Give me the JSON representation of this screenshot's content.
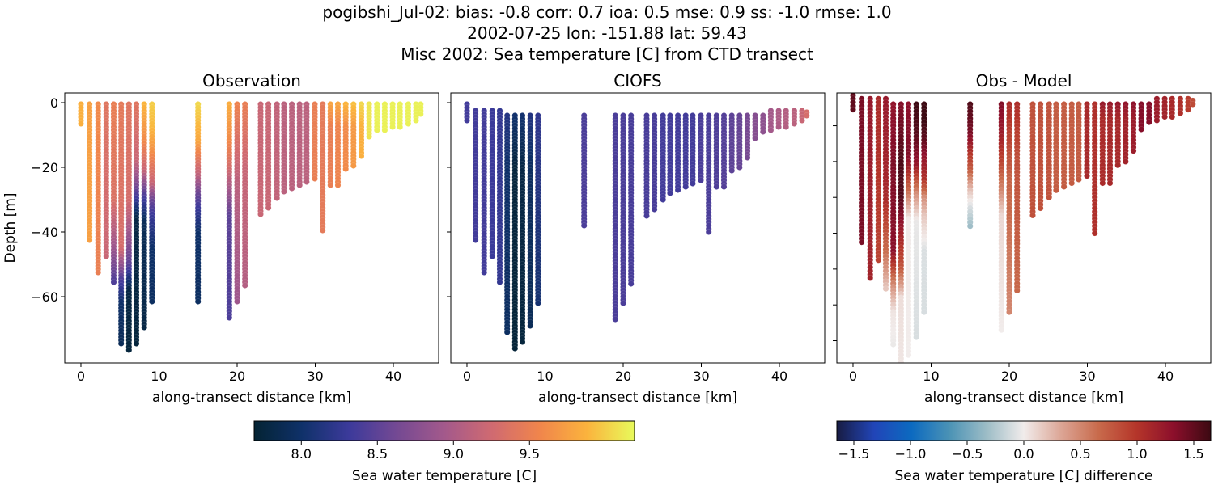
{
  "title_lines": [
    "pogibshi_Jul-02: bias: -0.8  corr: 0.7  ioa: 0.5  mse: 0.9  ss: -1.0  rmse: 1.0",
    "2002-07-25 lon: -151.88 lat: 59.43",
    "Misc 2002: Sea temperature [C] from CTD transect"
  ],
  "colormaps": {
    "thermal": [
      "#042333",
      "#0f3169",
      "#3c3a9b",
      "#744993",
      "#a3598b",
      "#d06a71",
      "#f0854c",
      "#fbb33d",
      "#e8fa5b"
    ],
    "balance": [
      "#181c43",
      "#2145b8",
      "#0c6ac0",
      "#4a92b5",
      "#9cbcc6",
      "#f1eceb",
      "#dca595",
      "#c86a4b",
      "#b5362a",
      "#8c0f2b",
      "#3c0912"
    ]
  },
  "chart_data": [
    {
      "type": "scatter",
      "title": "Observation",
      "xlabel": "along-transect distance [km]",
      "ylabel": "Depth [m]",
      "xlim": [
        -2.07,
        45.8
      ],
      "ylim": [
        -80.5,
        3
      ],
      "xticks": [
        0,
        10,
        20,
        30,
        40
      ],
      "yticks": [
        0,
        -20,
        -40,
        -60
      ],
      "ytick_labels": true,
      "field": "obs",
      "colormap": "thermal",
      "clim": [
        7.69,
        10.19
      ]
    },
    {
      "type": "scatter",
      "title": "CIOFS",
      "xlabel": "along-transect distance [km]",
      "xlim": [
        -2.07,
        45.8
      ],
      "ylim": [
        -80.5,
        3
      ],
      "xticks": [
        0,
        10,
        20,
        30,
        40
      ],
      "yticks": [
        0,
        -20,
        -40,
        -60
      ],
      "ytick_labels": false,
      "field": "model",
      "colormap": "thermal",
      "clim": [
        7.69,
        10.19
      ]
    },
    {
      "type": "scatter",
      "title": "Obs - Model",
      "xlabel": "along-transect distance [km]",
      "xlim": [
        -2.07,
        45.8
      ],
      "ylim": [
        -76.2,
        -0.85
      ],
      "xticks": [
        0,
        10,
        20,
        30,
        40
      ],
      "yticks": [
        -10,
        -20,
        -30,
        -40,
        -50,
        -60,
        -70
      ],
      "ytick_labels": false,
      "field": "diff",
      "colormap": "balance",
      "clim": [
        -1.65,
        1.65
      ]
    }
  ],
  "colorbars": [
    {
      "label": "Sea water temperature [C]",
      "colormap": "thermal",
      "clim": [
        7.69,
        10.19
      ],
      "ticks": [
        "8.0",
        "8.5",
        "9.0",
        "9.5"
      ]
    },
    {
      "label": "Sea water temperature [C] difference",
      "colormap": "balance",
      "clim": [
        -1.65,
        1.65
      ],
      "ticks": [
        "−1.5",
        "−1.0",
        "−0.5",
        "0.0",
        "0.5",
        "1.0",
        "1.5"
      ]
    }
  ],
  "casts": [
    {
      "x": 0,
      "obs": {
        "top": -0.5,
        "bottom": -7,
        "profile": [
          [
            0,
            9.85
          ]
        ]
      },
      "model": {
        "top": -0.5,
        "bottom": -6,
        "profile": [
          [
            0,
            8.35
          ]
        ]
      }
    },
    {
      "x": 1.1,
      "obs": {
        "top": -0.5,
        "bottom": -43,
        "profile": [
          [
            0,
            9.75
          ]
        ]
      },
      "model": {
        "top": -2.5,
        "bottom": -43,
        "profile": [
          [
            0,
            8.35
          ]
        ]
      }
    },
    {
      "x": 2.2,
      "obs": {
        "top": -0.5,
        "bottom": -53,
        "profile": [
          [
            0,
            9.6
          ],
          [
            -53,
            9.5
          ]
        ]
      },
      "model": {
        "top": -2.5,
        "bottom": -53,
        "profile": [
          [
            0,
            8.35
          ]
        ]
      }
    },
    {
      "x": 3.25,
      "obs": {
        "top": -0.5,
        "bottom": -48,
        "profile": [
          [
            0,
            9.4
          ],
          [
            -48,
            9.2
          ]
        ]
      },
      "model": {
        "top": -2.5,
        "bottom": -48,
        "profile": [
          [
            0,
            8.3
          ]
        ]
      }
    },
    {
      "x": 4.2,
      "obs": {
        "top": -0.5,
        "bottom": -56,
        "profile": [
          [
            0,
            9.5
          ],
          [
            -30,
            9.35
          ],
          [
            -45,
            8.9
          ],
          [
            -56,
            8.4
          ]
        ]
      },
      "model": {
        "top": -2.5,
        "bottom": -56,
        "profile": [
          [
            0,
            8.25
          ]
        ]
      }
    },
    {
      "x": 5.15,
      "obs": {
        "top": -0.5,
        "bottom": -74.5,
        "profile": [
          [
            0,
            9.45
          ],
          [
            -45,
            9.3
          ],
          [
            -55,
            8.4
          ],
          [
            -62,
            8.0
          ],
          [
            -74.5,
            7.9
          ]
        ]
      },
      "model": {
        "top": -4,
        "bottom": -71.5,
        "profile": [
          [
            0,
            8.2
          ],
          [
            -20,
            8.0
          ],
          [
            -71.5,
            7.95
          ]
        ]
      }
    },
    {
      "x": 6.15,
      "obs": {
        "top": -0.5,
        "bottom": -76.5,
        "profile": [
          [
            0,
            9.4
          ],
          [
            -30,
            9.3
          ],
          [
            -38,
            9.0
          ],
          [
            -50,
            8.5
          ],
          [
            -58,
            7.8
          ],
          [
            -76.5,
            7.75
          ]
        ]
      },
      "model": {
        "top": -4,
        "bottom": -76.5,
        "profile": [
          [
            0,
            8.1
          ],
          [
            -20,
            7.75
          ],
          [
            -76.5,
            7.72
          ]
        ]
      }
    },
    {
      "x": 7.1,
      "obs": {
        "top": -0.5,
        "bottom": -74.5,
        "profile": [
          [
            0,
            9.4
          ],
          [
            -18,
            9.2
          ],
          [
            -24,
            8.8
          ],
          [
            -30,
            8.3
          ],
          [
            -36,
            7.8
          ],
          [
            -74.5,
            7.75
          ]
        ]
      },
      "model": {
        "top": -4,
        "bottom": -74,
        "profile": [
          [
            0,
            8.1
          ],
          [
            -20,
            7.8
          ],
          [
            -74,
            7.75
          ]
        ]
      }
    },
    {
      "x": 8.1,
      "obs": {
        "top": -0.5,
        "bottom": -69.5,
        "profile": [
          [
            0,
            9.9
          ],
          [
            -12,
            9.6
          ],
          [
            -21,
            9.2
          ],
          [
            -29,
            8.4
          ],
          [
            -37,
            7.9
          ],
          [
            -69.5,
            7.8
          ]
        ]
      },
      "model": {
        "top": -4,
        "bottom": -69.5,
        "profile": [
          [
            0,
            8.2
          ],
          [
            -20,
            7.95
          ],
          [
            -69.5,
            7.9
          ]
        ]
      }
    },
    {
      "x": 9.1,
      "obs": {
        "top": -0.5,
        "bottom": -62.4,
        "profile": [
          [
            0,
            10.0
          ],
          [
            -8,
            9.9
          ],
          [
            -14,
            9.7
          ],
          [
            -20,
            9.4
          ],
          [
            -25,
            9.2
          ],
          [
            -30,
            8.6
          ],
          [
            -35,
            8.3
          ],
          [
            -45,
            8.0
          ],
          [
            -62.4,
            7.95
          ]
        ]
      },
      "model": {
        "top": -4,
        "bottom": -62.4,
        "profile": [
          [
            0,
            8.25
          ],
          [
            -40,
            8.1
          ],
          [
            -62.4,
            8.05
          ]
        ]
      }
    },
    {
      "x": 15.0,
      "obs": {
        "top": -0.5,
        "bottom": -62.4,
        "profile": [
          [
            0,
            10.05
          ],
          [
            -12,
            9.8
          ],
          [
            -18,
            9.4
          ],
          [
            -23,
            9.1
          ],
          [
            -28,
            8.6
          ],
          [
            -33,
            8.3
          ],
          [
            -40,
            8.0
          ],
          [
            -62.4,
            7.95
          ]
        ]
      },
      "model": {
        "top": -4,
        "bottom": -38,
        "profile": [
          [
            0,
            8.4
          ]
        ]
      }
    },
    {
      "x": 19.0,
      "obs": {
        "top": -0.5,
        "bottom": -67.4,
        "profile": [
          [
            0,
            9.85
          ],
          [
            -12,
            9.6
          ],
          [
            -20,
            9.3
          ],
          [
            -28,
            8.9
          ],
          [
            -35,
            8.5
          ],
          [
            -67.4,
            8.4
          ]
        ]
      },
      "model": {
        "top": -4,
        "bottom": -67.4,
        "profile": [
          [
            0,
            8.4
          ]
        ]
      }
    },
    {
      "x": 20.0,
      "obs": {
        "top": -0.5,
        "bottom": -62.4,
        "profile": [
          [
            0,
            9.55
          ],
          [
            -25,
            9.1
          ],
          [
            -62.4,
            8.9
          ]
        ]
      },
      "model": {
        "top": -4,
        "bottom": -62.4,
        "profile": [
          [
            0,
            8.4
          ]
        ]
      }
    },
    {
      "x": 21.0,
      "obs": {
        "top": -0.5,
        "bottom": -56.5,
        "profile": [
          [
            0,
            9.5
          ],
          [
            -20,
            9.2
          ],
          [
            -56.5,
            9.05
          ]
        ]
      },
      "model": {
        "top": -4,
        "bottom": -56.5,
        "profile": [
          [
            0,
            8.38
          ]
        ]
      }
    },
    {
      "x": 23.0,
      "obs": {
        "top": -0.5,
        "bottom": -35,
        "profile": [
          [
            0,
            9.2
          ]
        ]
      },
      "model": {
        "top": -4,
        "bottom": -35,
        "profile": [
          [
            0,
            8.38
          ]
        ]
      }
    },
    {
      "x": 24.0,
      "obs": {
        "top": -0.5,
        "bottom": -33,
        "profile": [
          [
            0,
            9.2
          ]
        ]
      },
      "model": {
        "top": -4,
        "bottom": -33,
        "profile": [
          [
            0,
            8.38
          ]
        ]
      }
    },
    {
      "x": 25.1,
      "obs": {
        "top": -0.5,
        "bottom": -30,
        "profile": [
          [
            0,
            9.15
          ]
        ]
      },
      "model": {
        "top": -4,
        "bottom": -30,
        "profile": [
          [
            0,
            8.35
          ]
        ]
      }
    },
    {
      "x": 26.0,
      "obs": {
        "top": -0.5,
        "bottom": -28,
        "profile": [
          [
            0,
            9.1
          ]
        ]
      },
      "model": {
        "top": -4,
        "bottom": -28,
        "profile": [
          [
            0,
            8.35
          ]
        ]
      }
    },
    {
      "x": 27.0,
      "obs": {
        "top": -0.5,
        "bottom": -27,
        "profile": [
          [
            0,
            9.1
          ]
        ]
      },
      "model": {
        "top": -4,
        "bottom": -27,
        "profile": [
          [
            0,
            8.35
          ]
        ]
      }
    },
    {
      "x": 28.0,
      "obs": {
        "top": -0.5,
        "bottom": -26,
        "profile": [
          [
            0,
            9.1
          ]
        ]
      },
      "model": {
        "top": -4,
        "bottom": -26,
        "profile": [
          [
            0,
            8.35
          ]
        ]
      }
    },
    {
      "x": 28.9,
      "obs": {
        "top": -0.5,
        "bottom": -25,
        "profile": [
          [
            0,
            9.1
          ]
        ]
      },
      "model": {
        "top": -4,
        "bottom": -25,
        "profile": [
          [
            0,
            8.35
          ]
        ]
      }
    },
    {
      "x": 29.95,
      "obs": {
        "top": -0.5,
        "bottom": -24,
        "profile": [
          [
            0,
            9.5
          ]
        ]
      },
      "model": {
        "top": -4,
        "bottom": -24,
        "profile": [
          [
            0,
            8.4
          ]
        ]
      }
    },
    {
      "x": 30.95,
      "obs": {
        "top": -0.5,
        "bottom": -40,
        "profile": [
          [
            0,
            9.45
          ]
        ]
      },
      "model": {
        "top": -4,
        "bottom": -40,
        "profile": [
          [
            0,
            8.4
          ]
        ]
      }
    },
    {
      "x": 31.95,
      "obs": {
        "top": -0.5,
        "bottom": -26,
        "profile": [
          [
            0,
            9.8
          ],
          [
            -8,
            9.5
          ]
        ]
      },
      "model": {
        "top": -4,
        "bottom": -26,
        "profile": [
          [
            0,
            8.42
          ]
        ]
      }
    },
    {
      "x": 32.9,
      "obs": {
        "top": -0.5,
        "bottom": -26,
        "profile": [
          [
            0,
            9.8
          ],
          [
            -8,
            9.55
          ]
        ]
      },
      "model": {
        "top": -4,
        "bottom": -26,
        "profile": [
          [
            0,
            8.45
          ]
        ]
      }
    },
    {
      "x": 33.9,
      "obs": {
        "top": -0.5,
        "bottom": -21,
        "profile": [
          [
            0,
            9.9
          ],
          [
            -8,
            9.6
          ]
        ]
      },
      "model": {
        "top": -4,
        "bottom": -21,
        "profile": [
          [
            0,
            8.5
          ]
        ]
      }
    },
    {
      "x": 34.9,
      "obs": {
        "top": -0.5,
        "bottom": -20,
        "profile": [
          [
            0,
            9.95
          ],
          [
            -8,
            9.7
          ]
        ]
      },
      "model": {
        "top": -4,
        "bottom": -20,
        "profile": [
          [
            0,
            8.55
          ]
        ]
      }
    },
    {
      "x": 35.9,
      "obs": {
        "top": -0.5,
        "bottom": -17,
        "profile": [
          [
            0,
            10.05
          ],
          [
            -8,
            9.85
          ]
        ]
      },
      "model": {
        "top": -4,
        "bottom": -17,
        "profile": [
          [
            0,
            8.65
          ]
        ]
      }
    },
    {
      "x": 36.9,
      "obs": {
        "top": -0.5,
        "bottom": -11,
        "profile": [
          [
            0,
            10.1
          ]
        ]
      },
      "model": {
        "top": -4,
        "bottom": -11,
        "profile": [
          [
            0,
            8.75
          ]
        ]
      }
    },
    {
      "x": 37.9,
      "obs": {
        "top": -0.5,
        "bottom": -9,
        "profile": [
          [
            0,
            10.15
          ]
        ]
      },
      "model": {
        "top": -4,
        "bottom": -9,
        "profile": [
          [
            0,
            8.8
          ]
        ]
      }
    },
    {
      "x": 38.9,
      "obs": {
        "top": -0.5,
        "bottom": -9,
        "profile": [
          [
            0,
            10.15
          ]
        ]
      },
      "model": {
        "top": -2.5,
        "bottom": -9,
        "profile": [
          [
            0,
            8.95
          ]
        ]
      }
    },
    {
      "x": 39.9,
      "obs": {
        "top": -0.5,
        "bottom": -8,
        "profile": [
          [
            0,
            10.15
          ]
        ]
      },
      "model": {
        "top": -2.5,
        "bottom": -8,
        "profile": [
          [
            0,
            9.0
          ]
        ]
      }
    },
    {
      "x": 40.85,
      "obs": {
        "top": -0.5,
        "bottom": -8,
        "profile": [
          [
            0,
            10.15
          ]
        ]
      },
      "model": {
        "top": -2.5,
        "bottom": -8,
        "profile": [
          [
            0,
            9.05
          ]
        ]
      }
    },
    {
      "x": 41.9,
      "obs": {
        "top": -0.5,
        "bottom": -7,
        "profile": [
          [
            0,
            10.15
          ]
        ]
      },
      "model": {
        "top": -2.5,
        "bottom": -7,
        "profile": [
          [
            0,
            9.1
          ]
        ]
      }
    },
    {
      "x": 42.9,
      "obs": {
        "top": -0.5,
        "bottom": -6,
        "profile": [
          [
            0,
            10.15
          ]
        ]
      },
      "model": {
        "top": -2.5,
        "bottom": -6,
        "profile": [
          [
            0,
            9.2
          ]
        ]
      }
    },
    {
      "x": 43.5,
      "obs": {
        "top": -0.5,
        "bottom": -4,
        "profile": [
          [
            0,
            10.15
          ]
        ]
      },
      "model": {
        "top": -3,
        "bottom": -4,
        "profile": [
          [
            0,
            9.3
          ]
        ]
      }
    }
  ]
}
